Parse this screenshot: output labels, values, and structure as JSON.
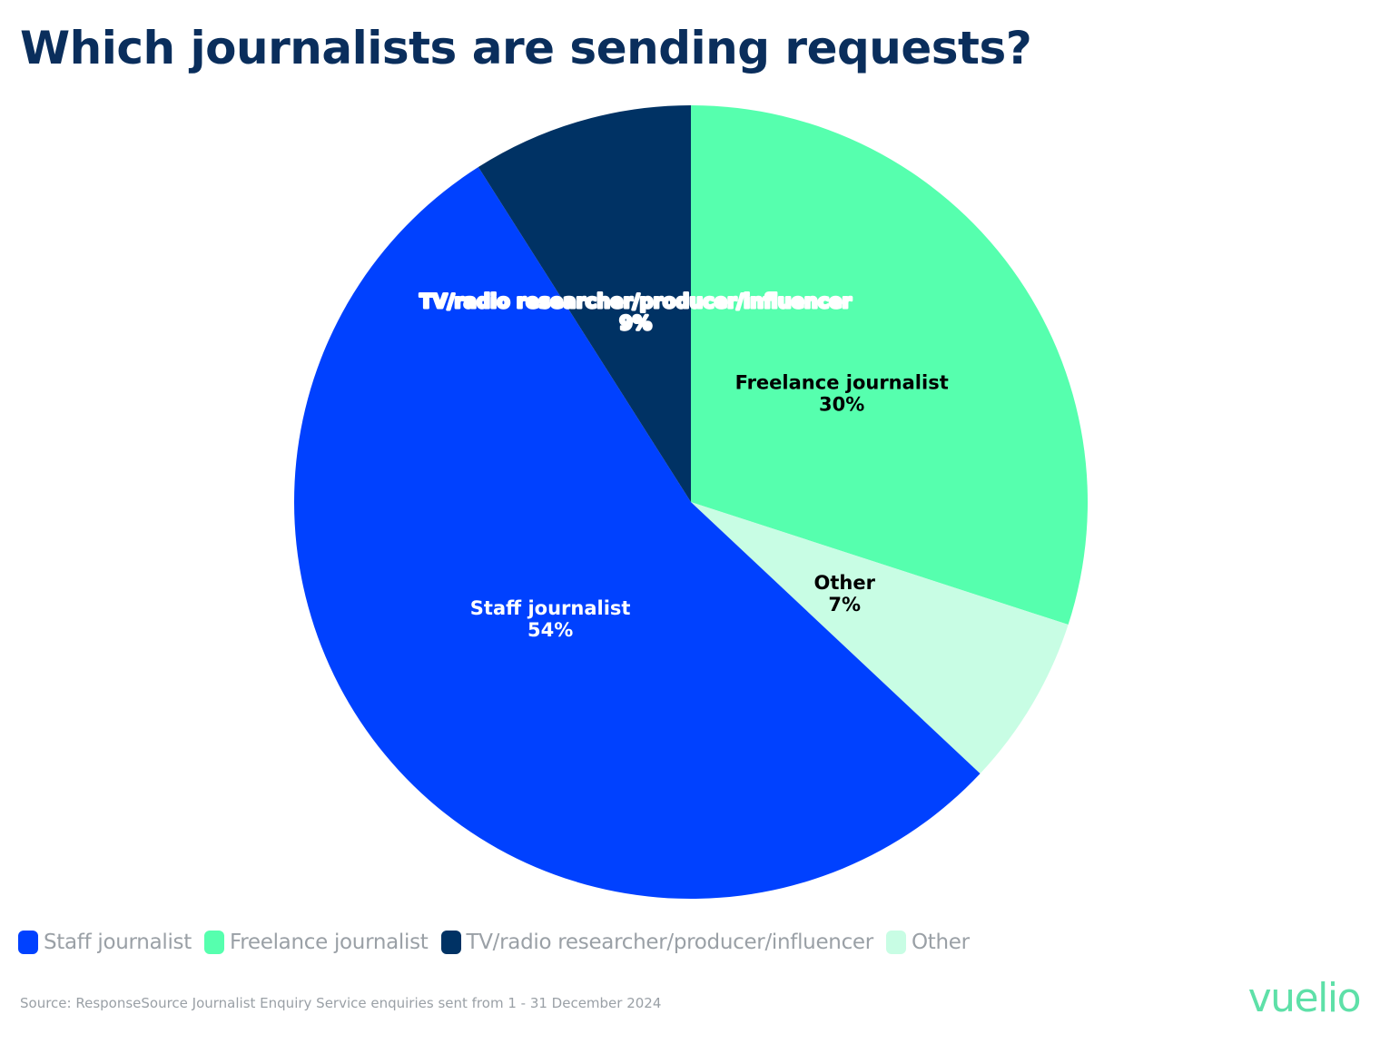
{
  "title": "Which journalists are sending requests?",
  "chart_data": {
    "type": "pie",
    "slices": [
      {
        "label": "Freelance journalist",
        "value": 30,
        "display": "30%",
        "color": "#56ffae",
        "text_color": "#000000"
      },
      {
        "label": "Other",
        "value": 7,
        "display": "7%",
        "color": "#c8fde4",
        "text_color": "#000000"
      },
      {
        "label": "Staff journalist",
        "value": 54,
        "display": "54%",
        "color": "#0041ff",
        "text_color": "#ffffff"
      },
      {
        "label": "TV/radio researcher/producer/influencer",
        "value": 9,
        "display": "9%",
        "color": "#003264",
        "text_color": "#ffffff"
      }
    ],
    "start_angle_deg": 0,
    "direction": "clockwise",
    "legend": {
      "placement": "bottom-left",
      "order": [
        "Staff journalist",
        "Freelance journalist",
        "TV/radio researcher/producer/influencer",
        "Other"
      ]
    }
  },
  "source": "Source: ResponseSource Journalist Enquiry Service enquiries sent from 1 - 31 December 2024",
  "logo": "vuelio"
}
